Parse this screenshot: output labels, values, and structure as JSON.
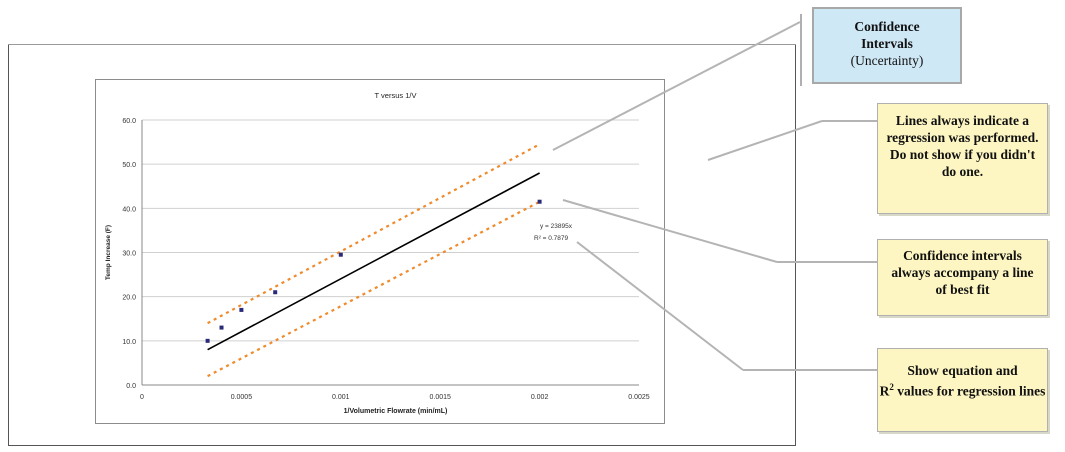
{
  "chart_data": {
    "type": "scatter",
    "title": "T versus 1/V",
    "xlabel": "1/Volumetric Flowrate (min/mL)",
    "ylabel": "Temp Increase (F)",
    "xlim": [
      0,
      0.0025
    ],
    "ylim": [
      0,
      60
    ],
    "x_ticks": [
      "0",
      "0.0005",
      "0.001",
      "0.0015",
      "0.002",
      "0.0025"
    ],
    "y_ticks": [
      "0.0",
      "10.0",
      "20.0",
      "30.0",
      "40.0",
      "50.0",
      "60.0"
    ],
    "grid": true,
    "points": [
      {
        "x": 0.00033,
        "y": 10
      },
      {
        "x": 0.0004,
        "y": 13
      },
      {
        "x": 0.0005,
        "y": 17
      },
      {
        "x": 0.00067,
        "y": 21
      },
      {
        "x": 0.001,
        "y": 29.5
      },
      {
        "x": 0.002,
        "y": 41.5
      }
    ],
    "regression_line": {
      "x": [
        0.00033,
        0.002
      ],
      "y": [
        8,
        48
      ]
    },
    "confidence_upper": {
      "x": [
        0.00033,
        0.002
      ],
      "y": [
        14,
        54.5
      ]
    },
    "confidence_lower": {
      "x": [
        0.00033,
        0.002
      ],
      "y": [
        2,
        41.5
      ]
    },
    "equation_text": "y = 23895x",
    "r2_text": "R² = 0.7879",
    "colors": {
      "points": "#2a2a7a",
      "regression": "#000000",
      "confidence": "#f08a2a",
      "grid": "#d0d0d0"
    }
  },
  "callouts": {
    "confidence_title": "Confidence Intervals",
    "confidence_sub": "(Uncertainty)",
    "regression_note": "Lines always indicate a regression was performed.  Do not show if you didn't do one.",
    "ci_note": "Confidence intervals always accompany a line of best fit",
    "equation_note_1": "Show equation and",
    "equation_note_r": "R",
    "equation_note_sup": "2",
    "equation_note_2": " values for regression lines"
  }
}
